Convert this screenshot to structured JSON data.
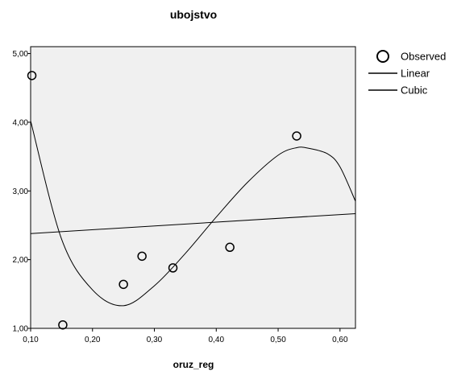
{
  "chart_data": {
    "type": "scatter",
    "title": "ubojstvo",
    "xlabel": "oruz_reg",
    "ylabel": "",
    "xlim": [
      0.1,
      0.625
    ],
    "ylim": [
      1.0,
      5.1
    ],
    "x_ticks": [
      "0,10",
      "0,20",
      "0,30",
      "0,40",
      "0,50",
      "0,60"
    ],
    "x_tick_values": [
      0.1,
      0.2,
      0.3,
      0.4,
      0.5,
      0.6
    ],
    "y_ticks": [
      "1,00",
      "2,00",
      "3,00",
      "4,00",
      "5,00"
    ],
    "y_tick_values": [
      1.0,
      2.0,
      3.0,
      4.0,
      5.0
    ],
    "grid": false,
    "legend_position": "right",
    "plot_background": "#f0f0f0",
    "series": [
      {
        "name": "Observed",
        "kind": "points",
        "marker": "open-circle",
        "points": [
          {
            "x": 0.102,
            "y": 4.68
          },
          {
            "x": 0.152,
            "y": 1.05
          },
          {
            "x": 0.25,
            "y": 1.64
          },
          {
            "x": 0.28,
            "y": 2.05
          },
          {
            "x": 0.33,
            "y": 1.88
          },
          {
            "x": 0.422,
            "y": 2.18
          },
          {
            "x": 0.53,
            "y": 3.8
          }
        ]
      },
      {
        "name": "Linear",
        "kind": "line",
        "points": [
          {
            "x": 0.1,
            "y": 2.38
          },
          {
            "x": 0.625,
            "y": 2.67
          }
        ]
      },
      {
        "name": "Cubic",
        "kind": "curve",
        "points": [
          {
            "x": 0.1,
            "y": 4.02
          },
          {
            "x": 0.15,
            "y": 2.3
          },
          {
            "x": 0.2,
            "y": 1.56
          },
          {
            "x": 0.25,
            "y": 1.33
          },
          {
            "x": 0.3,
            "y": 1.62
          },
          {
            "x": 0.35,
            "y": 2.09
          },
          {
            "x": 0.4,
            "y": 2.62
          },
          {
            "x": 0.45,
            "y": 3.12
          },
          {
            "x": 0.5,
            "y": 3.52
          },
          {
            "x": 0.53,
            "y": 3.63
          },
          {
            "x": 0.55,
            "y": 3.62
          },
          {
            "x": 0.58,
            "y": 3.54
          },
          {
            "x": 0.6,
            "y": 3.35
          },
          {
            "x": 0.625,
            "y": 2.85
          }
        ]
      }
    ]
  }
}
